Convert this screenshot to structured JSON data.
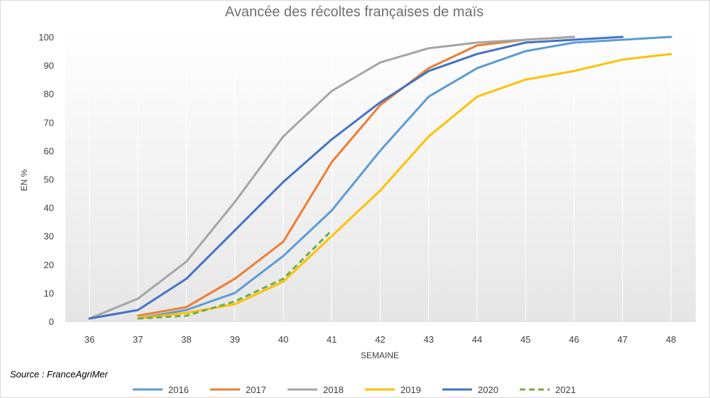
{
  "chart_data": {
    "type": "line",
    "title": "Avancée des récoltes françaises de maïs",
    "xlabel": "SEMAINE",
    "ylabel": "EN %",
    "source": "Source : FranceAgriMer",
    "categories": [
      "36",
      "37",
      "38",
      "39",
      "40",
      "41",
      "42",
      "43",
      "44",
      "45",
      "46",
      "47",
      "48"
    ],
    "yticks": [
      "0",
      "10",
      "20",
      "30",
      "40",
      "50",
      "60",
      "70",
      "80",
      "90",
      "100"
    ],
    "ylim": [
      0,
      100
    ],
    "grid": "vertical",
    "legend_position": "bottom",
    "series": [
      {
        "name": "2016",
        "color": "#5B9BD5",
        "dash": false,
        "values": [
          null,
          1,
          4,
          10,
          23,
          39,
          60,
          79,
          89,
          95,
          98,
          99,
          100
        ]
      },
      {
        "name": "2017",
        "color": "#ED7D31",
        "dash": false,
        "values": [
          null,
          2,
          5,
          15,
          28,
          56,
          76,
          89,
          97,
          99,
          100,
          null,
          null
        ]
      },
      {
        "name": "2018",
        "color": "#A5A5A5",
        "dash": false,
        "values": [
          1,
          8,
          21,
          42,
          65,
          81,
          91,
          96,
          98,
          99,
          100,
          null,
          null
        ]
      },
      {
        "name": "2019",
        "color": "#FFC000",
        "dash": false,
        "values": [
          null,
          1,
          3,
          6,
          14,
          30,
          46,
          65,
          79,
          85,
          88,
          92,
          94
        ]
      },
      {
        "name": "2020",
        "color": "#4472C4",
        "dash": false,
        "values": [
          1,
          4,
          15,
          32,
          49,
          64,
          77,
          88,
          94,
          98,
          99,
          100,
          null
        ]
      },
      {
        "name": "2021",
        "color": "#70AD47",
        "dash": true,
        "values": [
          null,
          1,
          2,
          7,
          15,
          32,
          null,
          null,
          null,
          null,
          null,
          null,
          null
        ]
      }
    ]
  }
}
